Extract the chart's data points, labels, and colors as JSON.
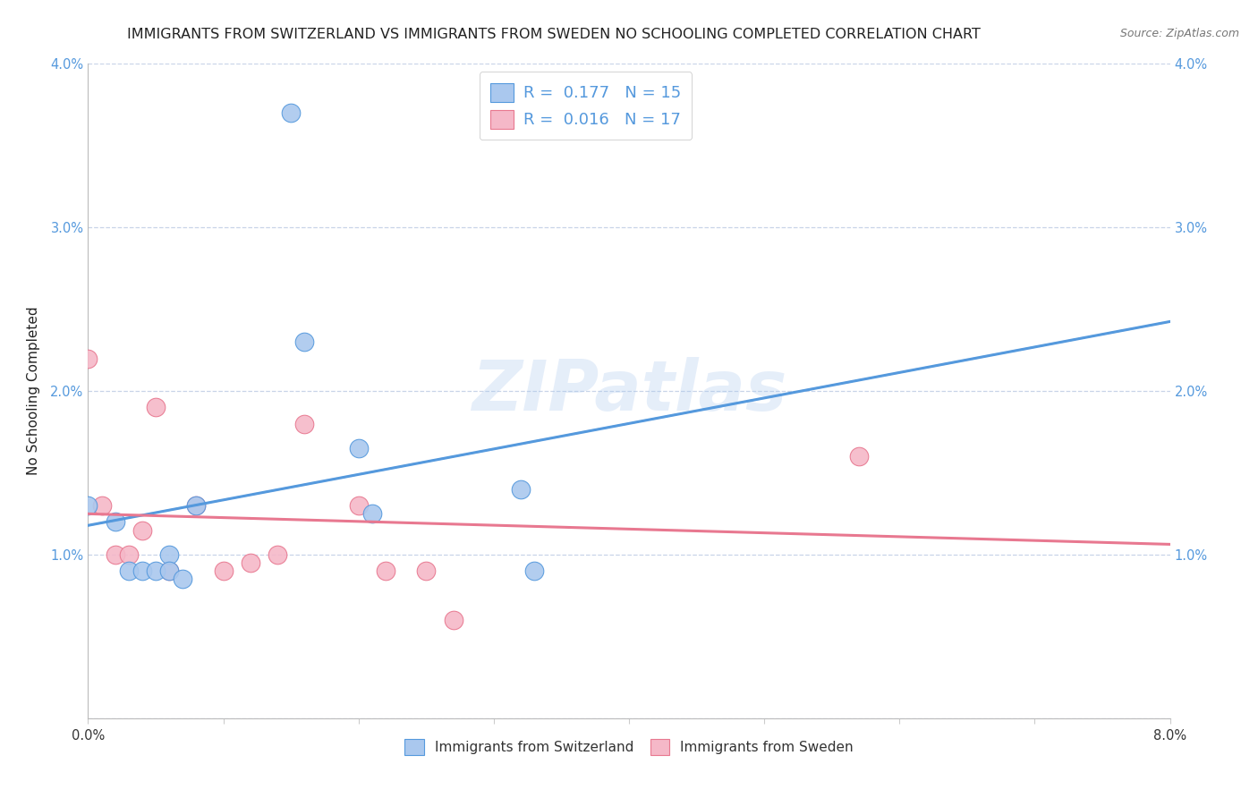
{
  "title": "IMMIGRANTS FROM SWITZERLAND VS IMMIGRANTS FROM SWEDEN NO SCHOOLING COMPLETED CORRELATION CHART",
  "source": "Source: ZipAtlas.com",
  "ylabel": "No Schooling Completed",
  "xlim": [
    0.0,
    0.08
  ],
  "ylim": [
    0.0,
    0.04
  ],
  "yticks": [
    0.0,
    0.01,
    0.02,
    0.03,
    0.04
  ],
  "ytick_labels_left": [
    "",
    "1.0%",
    "2.0%",
    "3.0%",
    "4.0%"
  ],
  "ytick_labels_right": [
    "",
    "1.0%",
    "2.0%",
    "3.0%",
    "4.0%"
  ],
  "xticks": [
    0.0,
    0.01,
    0.02,
    0.03,
    0.04,
    0.05,
    0.06,
    0.07,
    0.08
  ],
  "xtick_labels": [
    "0.0%",
    "",
    "",
    "",
    "",
    "",
    "",
    "",
    "8.0%"
  ],
  "legend1_label": "R =  0.177   N = 15",
  "legend2_label": "R =  0.016   N = 17",
  "legend1_fill": "#aac8ee",
  "legend2_fill": "#f5b8c8",
  "trendline1_color": "#5599dd",
  "trendline2_color": "#e87890",
  "watermark": "ZIPatlas",
  "sw_x": [
    0.0,
    0.002,
    0.003,
    0.004,
    0.005,
    0.006,
    0.006,
    0.007,
    0.008,
    0.015,
    0.016,
    0.02,
    0.021,
    0.032,
    0.033
  ],
  "sw_y": [
    0.013,
    0.012,
    0.009,
    0.009,
    0.009,
    0.01,
    0.009,
    0.0085,
    0.013,
    0.037,
    0.023,
    0.0165,
    0.0125,
    0.014,
    0.009
  ],
  "se_x": [
    0.0,
    0.001,
    0.002,
    0.003,
    0.004,
    0.005,
    0.006,
    0.008,
    0.01,
    0.012,
    0.014,
    0.016,
    0.02,
    0.022,
    0.025,
    0.027,
    0.057
  ],
  "se_y": [
    0.022,
    0.013,
    0.01,
    0.01,
    0.0115,
    0.019,
    0.009,
    0.013,
    0.009,
    0.0095,
    0.01,
    0.018,
    0.013,
    0.009,
    0.009,
    0.006,
    0.016
  ],
  "bubble_size": 220,
  "background_color": "#ffffff",
  "grid_color": "#c8d4e8",
  "title_fontsize": 11.5,
  "axis_label_fontsize": 11,
  "tick_fontsize": 10.5,
  "tick_color_y": "#5599dd",
  "tick_color_x": "#333333",
  "legend_label_color": "#5599dd",
  "source_color": "#777777"
}
